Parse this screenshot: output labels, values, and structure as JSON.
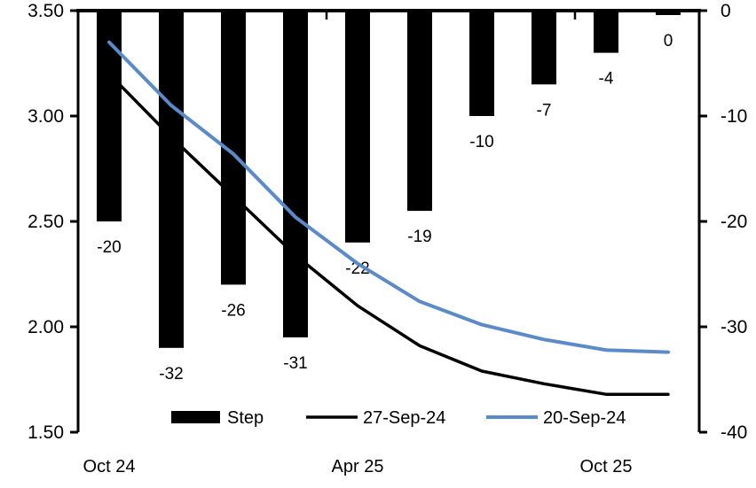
{
  "chart_data": {
    "type": "bar",
    "subtype": "combo-bar-line-dual-axis",
    "title": "",
    "categories": [
      "1",
      "2",
      "3",
      "4",
      "5",
      "6",
      "7",
      "8",
      "9",
      "10"
    ],
    "x_tick_labels": [
      {
        "category_index": 0,
        "label": "Oct 24"
      },
      {
        "category_index": 4,
        "label": "Apr 25"
      },
      {
        "category_index": 8,
        "label": "Oct 25"
      }
    ],
    "bars": {
      "name": "Step",
      "axis": "right",
      "color": "#000000",
      "values": [
        -20,
        -32,
        -26,
        -31,
        -22,
        -19,
        -10,
        -7,
        -4,
        0
      ],
      "data_labels": [
        "-20",
        "-32",
        "-26",
        "-31",
        "-22",
        "-19",
        "-10",
        "-7",
        "-4",
        "0"
      ]
    },
    "series": [
      {
        "name": "27-Sep-24",
        "axis": "left",
        "type": "line",
        "color": "#000000",
        "values": [
          3.2,
          2.9,
          2.62,
          2.34,
          2.1,
          1.91,
          1.79,
          1.73,
          1.68,
          1.68
        ]
      },
      {
        "name": "20-Sep-24",
        "axis": "left",
        "type": "line",
        "color": "#5b8ac9",
        "values": [
          3.35,
          3.05,
          2.82,
          2.52,
          2.3,
          2.12,
          2.01,
          1.94,
          1.89,
          1.88
        ]
      }
    ],
    "left_axis": {
      "min": 1.5,
      "max": 3.5,
      "tick_labels": [
        "3.50",
        "3.00",
        "2.50",
        "2.00",
        "1.50"
      ]
    },
    "right_axis": {
      "min": -40,
      "max": 0,
      "tick_labels": [
        "0",
        "-10",
        "-20",
        "-30",
        "-40"
      ]
    },
    "grid": "off",
    "legend": {
      "position": "bottom",
      "items": [
        {
          "label": "Step",
          "swatch": "bar",
          "color": "#000000"
        },
        {
          "label": "27-Sep-24",
          "swatch": "line",
          "color": "#000000"
        },
        {
          "label": "20-Sep-24",
          "swatch": "line",
          "color": "#5b8ac9"
        }
      ]
    }
  }
}
